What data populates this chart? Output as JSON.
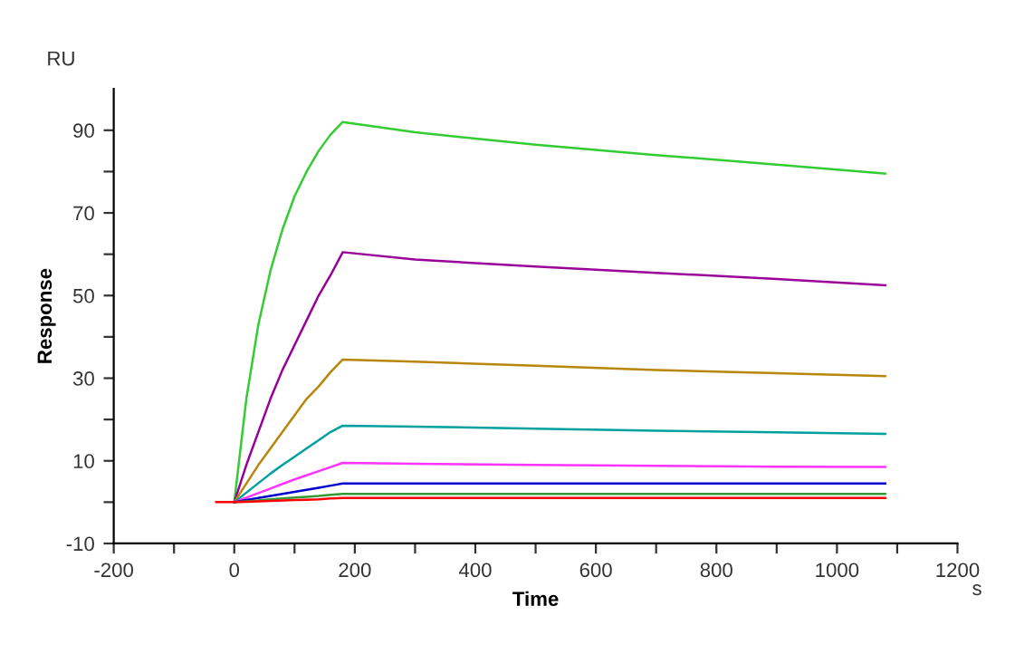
{
  "chart_data": {
    "type": "line",
    "xlabel": "Time",
    "ylabel": "Response",
    "annotations": [
      "RU",
      "s"
    ],
    "x": [
      -30,
      0,
      20,
      40,
      60,
      80,
      100,
      120,
      140,
      160,
      180,
      300,
      500,
      700,
      900,
      1080
    ],
    "series": [
      {
        "color": "#33cc33",
        "values": [
          null,
          0,
          25,
          43,
          56,
          66,
          74,
          80,
          85,
          89,
          92,
          89.5,
          86.5,
          84,
          81.7,
          79.5
        ]
      },
      {
        "color": "#990099",
        "values": [
          null,
          0,
          9,
          17,
          25,
          32,
          38,
          44,
          50,
          55,
          60.5,
          58.7,
          57,
          55.5,
          54,
          52.5
        ]
      },
      {
        "color": "#b8860b",
        "values": [
          null,
          0,
          4.5,
          9,
          13,
          17,
          21,
          25,
          28,
          31.5,
          34.5,
          34,
          33,
          32,
          31.2,
          30.5
        ]
      },
      {
        "color": "#00a0a0",
        "values": [
          null,
          0,
          2.3,
          4.6,
          6.9,
          9,
          11,
          13,
          15,
          17,
          18.5,
          18.3,
          17.8,
          17.3,
          16.9,
          16.5
        ]
      },
      {
        "color": "#ff33ff",
        "values": [
          null,
          0,
          1.1,
          2.2,
          3.3,
          4.4,
          5.5,
          6.5,
          7.5,
          8.5,
          9.5,
          9.3,
          9,
          8.8,
          8.6,
          8.5
        ]
      },
      {
        "color": "#0000cc",
        "values": [
          null,
          0,
          0.5,
          1,
          1.5,
          2,
          2.5,
          3,
          3.5,
          4,
          4.5,
          4.5,
          4.5,
          4.5,
          4.5,
          4.5
        ]
      },
      {
        "color": "#339933",
        "values": [
          null,
          0,
          0.2,
          0.4,
          0.7,
          0.9,
          1.1,
          1.3,
          1.5,
          1.8,
          2,
          2,
          2,
          2,
          2,
          2
        ]
      },
      {
        "color": "#ff0000",
        "values": [
          0,
          0,
          0.1,
          0.2,
          0.3,
          0.4,
          0.5,
          0.6,
          0.7,
          0.9,
          1,
          1,
          1,
          1,
          1,
          1
        ]
      }
    ],
    "xlim": [
      -200,
      1200
    ],
    "xticks": [
      -200,
      {
        "value": -100,
        "label": null
      },
      0,
      {
        "value": 100,
        "label": null
      },
      200,
      {
        "value": 300,
        "label": null
      },
      400,
      {
        "value": 500,
        "label": null
      },
      600,
      {
        "value": 700,
        "label": null
      },
      800,
      {
        "value": 900,
        "label": null
      },
      1000,
      {
        "value": 1100,
        "label": null
      },
      1200
    ],
    "ylim": [
      -10,
      100
    ],
    "yticks": [
      -10,
      {
        "value": 0,
        "label": null
      },
      10,
      {
        "value": 20,
        "label": null
      },
      30,
      {
        "value": 40,
        "label": null
      },
      50,
      {
        "value": 60,
        "label": null
      },
      70,
      {
        "value": 80,
        "label": null
      },
      90
    ],
    "grid": false,
    "marker": "none",
    "line_style": "solid"
  }
}
